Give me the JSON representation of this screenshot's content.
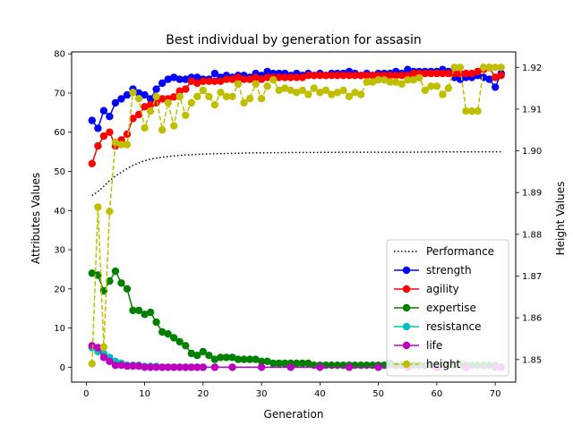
{
  "chart_data": {
    "type": "line",
    "title": "Best individual by generation for assasin",
    "xlabel": "Generation",
    "ylabel": "Attributes Values",
    "ylabel_right": "Height Values",
    "xlim": [
      -2.5,
      73.5
    ],
    "ylim": [
      -3.8,
      80.5
    ],
    "ylim_right": [
      1.8446,
      1.9237
    ],
    "x_ticks": [
      0,
      10,
      20,
      30,
      40,
      50,
      60,
      70
    ],
    "y_ticks": [
      0,
      10,
      20,
      30,
      40,
      50,
      60,
      70,
      80
    ],
    "y_ticks_right": [
      1.85,
      1.86,
      1.87,
      1.88,
      1.89,
      1.9,
      1.91,
      1.92
    ],
    "legend_position": "lower right",
    "series": [
      {
        "name": "Performance",
        "color": "#000000",
        "style": "dotted",
        "axis": "left",
        "x": [
          1,
          2,
          3,
          4,
          5,
          6,
          7,
          8,
          9,
          10,
          11,
          12,
          13,
          14,
          15,
          16,
          17,
          18,
          19,
          20,
          22,
          25,
          28,
          30,
          35,
          40,
          45,
          50,
          55,
          60,
          65,
          70,
          71
        ],
        "values": [
          43.8,
          44.8,
          46.2,
          47.6,
          48.8,
          49.8,
          50.7,
          51.5,
          52.2,
          52.7,
          53.1,
          53.4,
          53.6,
          53.8,
          53.95,
          54.1,
          54.2,
          54.3,
          54.35,
          54.4,
          54.5,
          54.6,
          54.7,
          54.75,
          54.8,
          54.85,
          54.9,
          54.9,
          54.9,
          54.95,
          54.95,
          55.0,
          55.0
        ]
      },
      {
        "name": "strength",
        "color": "#0000ff",
        "style": "solid",
        "axis": "left",
        "x": [
          1,
          2,
          3,
          4,
          5,
          6,
          7,
          8,
          9,
          10,
          11,
          12,
          13,
          14,
          15,
          16,
          17,
          18,
          19,
          20,
          21,
          22,
          23,
          24,
          25,
          26,
          27,
          28,
          29,
          30,
          31,
          32,
          33,
          34,
          35,
          36,
          37,
          38,
          39,
          40,
          41,
          42,
          43,
          44,
          45,
          46,
          47,
          48,
          49,
          50,
          51,
          52,
          53,
          54,
          55,
          56,
          57,
          58,
          59,
          60,
          61,
          62,
          63,
          64,
          65,
          66,
          67,
          68,
          69,
          70,
          71
        ],
        "values": [
          63,
          61,
          65.5,
          64,
          67.5,
          68.5,
          69.5,
          71,
          70,
          69.5,
          68.5,
          71,
          72.5,
          73.5,
          74,
          73.5,
          73.5,
          74,
          74,
          73.5,
          73.5,
          75,
          74,
          74.5,
          74,
          74.5,
          74.5,
          74,
          75,
          74.5,
          75.5,
          75,
          75,
          75,
          74.5,
          75,
          74.5,
          75,
          74.5,
          75,
          74.5,
          75,
          75,
          75,
          75.5,
          75,
          74.5,
          75,
          74.5,
          75,
          75,
          75,
          75.5,
          75,
          76,
          75.5,
          75.5,
          75.5,
          75.5,
          75.5,
          76,
          75.5,
          74,
          73.5,
          74,
          74,
          74.5,
          74,
          73.5,
          71.5,
          75
        ]
      },
      {
        "name": "agility",
        "color": "#ff0000",
        "style": "solid",
        "axis": "left",
        "x": [
          1,
          2,
          3,
          4,
          5,
          6,
          7,
          8,
          9,
          10,
          11,
          12,
          13,
          14,
          15,
          16,
          17,
          18,
          19,
          20,
          21,
          22,
          23,
          24,
          25,
          26,
          27,
          28,
          29,
          30,
          31,
          32,
          33,
          34,
          35,
          36,
          37,
          38,
          39,
          40,
          41,
          42,
          43,
          44,
          45,
          46,
          47,
          48,
          49,
          50,
          51,
          52,
          53,
          54,
          55,
          56,
          57,
          58,
          59,
          60,
          61,
          62,
          63,
          64,
          65,
          66,
          67,
          68,
          69,
          70,
          71
        ],
        "values": [
          52,
          56.5,
          59,
          60,
          56.5,
          58,
          59.5,
          63.5,
          64.5,
          66.5,
          67,
          67.5,
          68.5,
          68.5,
          69,
          70.5,
          71,
          73,
          72.5,
          73,
          73,
          73,
          73,
          73.5,
          73.5,
          74,
          73.5,
          73.5,
          74,
          73.5,
          74,
          74,
          74,
          74,
          74,
          74,
          74,
          74.5,
          74.5,
          74.5,
          74.5,
          74.5,
          74.5,
          74.5,
          74.5,
          74.5,
          74.5,
          74.5,
          74.5,
          74.5,
          74.5,
          74.5,
          74.5,
          74.5,
          74.5,
          75,
          75,
          75,
          75,
          75,
          75,
          75,
          75,
          75,
          75,
          75,
          75.5,
          76,
          76.5,
          74,
          74.5
        ]
      },
      {
        "name": "expertise",
        "color": "#008000",
        "style": "solid",
        "axis": "left",
        "x": [
          1,
          2,
          3,
          4,
          5,
          6,
          7,
          8,
          9,
          10,
          11,
          12,
          13,
          14,
          15,
          16,
          17,
          18,
          19,
          20,
          21,
          22,
          23,
          24,
          25,
          26,
          27,
          28,
          29,
          30,
          31,
          32,
          33,
          34,
          35,
          36,
          37,
          38,
          39,
          40,
          41,
          42,
          43,
          44,
          45,
          46,
          47,
          48,
          49,
          50,
          51,
          52,
          53,
          54,
          55,
          56,
          57,
          58,
          59,
          60,
          61,
          62,
          63,
          64,
          65,
          66,
          67,
          68,
          69,
          70,
          71
        ],
        "values": [
          24,
          23.5,
          19.5,
          22,
          24.5,
          21.5,
          20,
          14.5,
          14.5,
          13.5,
          14,
          11.5,
          9,
          8.5,
          7.5,
          6.5,
          5.5,
          3.5,
          3,
          4,
          3,
          2,
          2.5,
          2.5,
          2.5,
          2,
          2,
          2,
          2,
          1.5,
          1.5,
          1,
          1,
          1,
          1,
          1,
          1,
          1,
          0.5,
          0.5,
          0.5,
          0.5,
          0.5,
          0.5,
          0.5,
          0.5,
          0.5,
          0.5,
          0.5,
          0.5,
          0.5,
          1,
          0.5,
          0.5,
          0.5,
          0.5,
          0.5,
          0.5,
          0.5,
          0.5,
          0.5,
          0.5,
          0.5,
          0.5,
          0.5,
          0.5,
          0.5,
          0.5,
          0.5,
          0.5,
          0
        ]
      },
      {
        "name": "resistance",
        "color": "#00bfbf",
        "style": "solid",
        "axis": "left",
        "x": [
          1,
          2,
          3,
          4,
          5,
          6,
          7,
          8,
          9,
          10,
          11,
          12,
          13,
          14,
          15,
          16,
          17,
          18,
          19,
          20,
          22,
          25,
          30,
          35,
          40,
          45,
          50,
          55,
          60,
          65,
          70,
          71
        ],
        "values": [
          5,
          4,
          3.5,
          2.5,
          1.5,
          1,
          0.5,
          0.5,
          0.5,
          0.2,
          0.2,
          0.2,
          0,
          0,
          0,
          0,
          0,
          0,
          0,
          0,
          0,
          0,
          0,
          0,
          0,
          0,
          0,
          0,
          0,
          0,
          0,
          0
        ]
      },
      {
        "name": "life",
        "color": "#bf00bf",
        "style": "solid",
        "axis": "left",
        "x": [
          1,
          2,
          3,
          4,
          5,
          6,
          7,
          8,
          9,
          10,
          11,
          12,
          13,
          14,
          15,
          16,
          17,
          18,
          19,
          20,
          22,
          25,
          30,
          35,
          40,
          45,
          50,
          55,
          60,
          65,
          70,
          71
        ],
        "values": [
          5.5,
          5,
          2.5,
          1.5,
          0.5,
          0.5,
          0.3,
          0.3,
          0.3,
          0,
          0,
          0,
          0,
          0,
          0,
          0,
          0,
          0,
          0,
          0,
          0,
          0,
          0,
          0,
          0,
          0,
          0,
          0,
          0,
          0,
          0,
          0
        ]
      },
      {
        "name": "height",
        "color": "#bfbf00",
        "style": "dashed",
        "axis": "right",
        "x": [
          1,
          2,
          3,
          4,
          5,
          6,
          7,
          8,
          9,
          10,
          11,
          12,
          13,
          14,
          15,
          16,
          17,
          18,
          19,
          20,
          21,
          22,
          23,
          24,
          25,
          26,
          27,
          28,
          29,
          30,
          31,
          32,
          33,
          34,
          35,
          36,
          37,
          38,
          39,
          40,
          41,
          42,
          43,
          44,
          45,
          46,
          47,
          48,
          49,
          50,
          51,
          52,
          53,
          54,
          55,
          56,
          57,
          58,
          59,
          60,
          61,
          62,
          63,
          64,
          65,
          66,
          67,
          68,
          69,
          70,
          71
        ],
        "values": [
          1.849,
          1.8865,
          1.853,
          1.8855,
          1.902,
          1.9015,
          1.9015,
          1.914,
          1.9125,
          1.9055,
          1.9095,
          1.913,
          1.905,
          1.9115,
          1.906,
          1.913,
          1.9085,
          1.9115,
          1.913,
          1.9145,
          1.913,
          1.911,
          1.914,
          1.913,
          1.913,
          1.916,
          1.9115,
          1.9125,
          1.916,
          1.9125,
          1.9155,
          1.917,
          1.9145,
          1.915,
          1.9145,
          1.914,
          1.9145,
          1.9135,
          1.915,
          1.914,
          1.9145,
          1.9135,
          1.914,
          1.9145,
          1.913,
          1.914,
          1.9135,
          1.9165,
          1.9165,
          1.917,
          1.917,
          1.9165,
          1.9165,
          1.916,
          1.917,
          1.917,
          1.9175,
          1.9145,
          1.9155,
          1.9155,
          1.9135,
          1.915,
          1.92,
          1.92,
          1.9095,
          1.9095,
          1.9095,
          1.92,
          1.92,
          1.92,
          1.92
        ]
      }
    ]
  }
}
